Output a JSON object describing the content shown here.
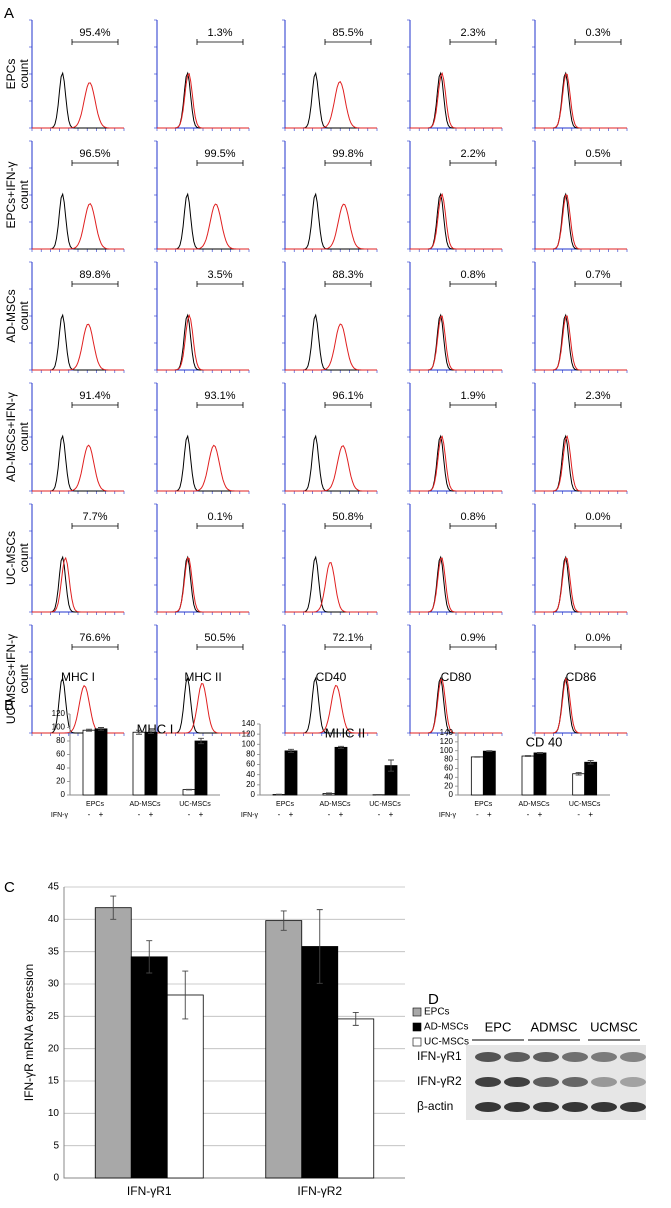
{
  "panel_a": {
    "label": "A",
    "y_label": "count",
    "rows": [
      "EPCs",
      "EPCs+IFN-γ",
      "AD-MSCs",
      "AD-MSCs+IFN-γ",
      "UC-MSCs",
      "UC-MSCs+IFN-γ"
    ],
    "columns": [
      "MHC I",
      "MHC II",
      "CD40",
      "CD80",
      "CD86"
    ],
    "percentages": [
      [
        "95.4%",
        "1.3%",
        "85.5%",
        "2.3%",
        "0.3%"
      ],
      [
        "96.5%",
        "99.5%",
        "99.8%",
        "2.2%",
        "0.5%"
      ],
      [
        "89.8%",
        "3.5%",
        "88.3%",
        "0.8%",
        "0.7%"
      ],
      [
        "91.4%",
        "93.1%",
        "96.1%",
        "1.9%",
        "2.3%"
      ],
      [
        "7.7%",
        "0.1%",
        "50.8%",
        "0.8%",
        "0.0%"
      ],
      [
        "76.6%",
        "50.5%",
        "72.1%",
        "0.9%",
        "0.0%"
      ]
    ]
  },
  "panel_b_label": "B",
  "panel_c_label": "C",
  "chart_data": [
    {
      "type": "bar",
      "title": "MHC I",
      "x_label": "IFN-γ",
      "categories": [
        "EPCs",
        "AD-MSCs",
        "UC-MSCs"
      ],
      "ylim": [
        0,
        120
      ],
      "yticks": [
        0,
        20,
        40,
        60,
        80,
        100,
        120
      ],
      "series": [
        {
          "name": "-",
          "color": "#ffffff",
          "values": [
            96,
            93,
            8
          ],
          "errors": [
            1.5,
            3,
            0.5
          ]
        },
        {
          "name": "+",
          "color": "#000000",
          "values": [
            98,
            93,
            80
          ],
          "errors": [
            2,
            2,
            4
          ]
        }
      ]
    },
    {
      "type": "bar",
      "title": "MHC II",
      "x_label": "IFN-γ",
      "categories": [
        "EPCs",
        "AD-MSCs",
        "UC-MSCs"
      ],
      "ylim": [
        0,
        140
      ],
      "yticks": [
        0,
        20,
        40,
        60,
        80,
        100,
        120,
        140
      ],
      "series": [
        {
          "name": "-",
          "color": "#ffffff",
          "values": [
            1,
            3,
            0.5
          ],
          "errors": [
            0.5,
            1,
            0.3
          ]
        },
        {
          "name": "+",
          "color": "#000000",
          "values": [
            87,
            94,
            58
          ],
          "errors": [
            3,
            2,
            11
          ]
        }
      ]
    },
    {
      "type": "bar",
      "title": "CD 40",
      "x_label": "IFN-γ",
      "categories": [
        "EPCs",
        "AD-MSCs",
        "UC-MSCs"
      ],
      "ylim": [
        0,
        140
      ],
      "yticks": [
        0,
        20,
        40,
        60,
        80,
        100,
        120,
        140
      ],
      "series": [
        {
          "name": "-",
          "color": "#ffffff",
          "values": [
            86,
            88,
            48
          ],
          "errors": [
            0.5,
            1,
            3
          ]
        },
        {
          "name": "+",
          "color": "#000000",
          "values": [
            99,
            95,
            74
          ],
          "errors": [
            1,
            1,
            4
          ]
        }
      ]
    },
    {
      "type": "bar",
      "y_label": "IFN-γR mRNA expression",
      "categories": [
        "IFN-γR1",
        "IFN-γR2"
      ],
      "ylim": [
        0,
        45
      ],
      "yticks": [
        0,
        5,
        10,
        15,
        20,
        25,
        30,
        35,
        40,
        45
      ],
      "grid": true,
      "series": [
        {
          "name": "EPCs",
          "color": "#a8a8a8",
          "values": [
            41.8,
            39.8
          ],
          "errors": [
            1.8,
            1.5
          ]
        },
        {
          "name": "AD-MSCs",
          "color": "#000000",
          "values": [
            34.2,
            35.8
          ],
          "errors": [
            2.5,
            5.7
          ]
        },
        {
          "name": "UC-MSCs",
          "color": "#ffffff",
          "values": [
            28.3,
            24.6
          ],
          "errors": [
            3.7,
            1
          ]
        }
      ]
    }
  ],
  "panel_d": {
    "label": "D",
    "groups": [
      "EPC",
      "ADMSC",
      "UCMSC"
    ],
    "bands": [
      "IFN-γR1",
      "IFN-γR2",
      "β-actin"
    ]
  }
}
